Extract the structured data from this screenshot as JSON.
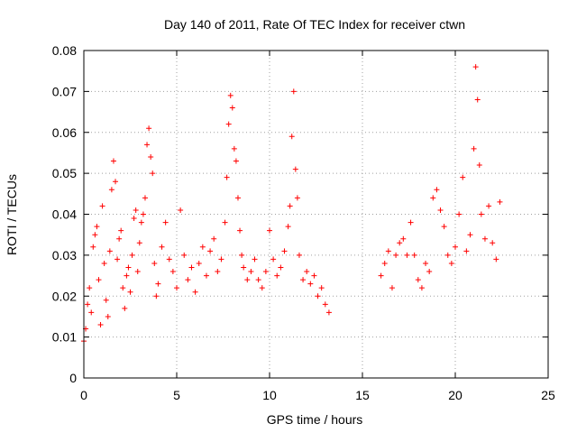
{
  "chart_data": {
    "type": "scatter",
    "title": "Day 140 of 2011, Rate Of TEC Index for receiver ctwn",
    "xlabel": "GPS time / hours",
    "ylabel": "ROTI / TECUs",
    "xlim": [
      0,
      25
    ],
    "ylim": [
      0,
      0.08
    ],
    "x_ticks": [
      "0",
      "5",
      "10",
      "15",
      "20",
      "25"
    ],
    "y_ticks": [
      "0",
      "0.01",
      "0.02",
      "0.03",
      "0.04",
      "0.05",
      "0.06",
      "0.07",
      "0.08"
    ],
    "grid": true,
    "marker": "plus",
    "color": "#ff0000",
    "series": [
      {
        "points": [
          [
            0.0,
            0.009
          ],
          [
            0.1,
            0.012
          ],
          [
            0.2,
            0.018
          ],
          [
            0.3,
            0.022
          ],
          [
            0.4,
            0.016
          ],
          [
            0.5,
            0.032
          ],
          [
            0.6,
            0.035
          ],
          [
            0.7,
            0.037
          ],
          [
            0.8,
            0.024
          ],
          [
            0.9,
            0.013
          ],
          [
            1.0,
            0.042
          ],
          [
            1.1,
            0.028
          ],
          [
            1.2,
            0.019
          ],
          [
            1.3,
            0.015
          ],
          [
            1.4,
            0.031
          ],
          [
            1.5,
            0.046
          ],
          [
            1.6,
            0.053
          ],
          [
            1.7,
            0.048
          ],
          [
            1.8,
            0.029
          ],
          [
            1.9,
            0.034
          ],
          [
            2.0,
            0.036
          ],
          [
            2.1,
            0.022
          ],
          [
            2.2,
            0.017
          ],
          [
            2.3,
            0.025
          ],
          [
            2.4,
            0.027
          ],
          [
            2.5,
            0.021
          ],
          [
            2.6,
            0.03
          ],
          [
            2.7,
            0.039
          ],
          [
            2.8,
            0.041
          ],
          [
            2.9,
            0.026
          ],
          [
            3.0,
            0.033
          ],
          [
            3.1,
            0.038
          ],
          [
            3.2,
            0.04
          ],
          [
            3.3,
            0.044
          ],
          [
            3.4,
            0.057
          ],
          [
            3.5,
            0.061
          ],
          [
            3.6,
            0.054
          ],
          [
            3.7,
            0.05
          ],
          [
            3.8,
            0.028
          ],
          [
            3.9,
            0.02
          ],
          [
            4.0,
            0.023
          ],
          [
            4.2,
            0.032
          ],
          [
            4.4,
            0.038
          ],
          [
            4.6,
            0.029
          ],
          [
            4.8,
            0.026
          ],
          [
            5.0,
            0.022
          ],
          [
            5.2,
            0.041
          ],
          [
            5.4,
            0.03
          ],
          [
            5.6,
            0.024
          ],
          [
            5.8,
            0.027
          ],
          [
            6.0,
            0.021
          ],
          [
            6.2,
            0.028
          ],
          [
            6.4,
            0.032
          ],
          [
            6.6,
            0.025
          ],
          [
            6.8,
            0.031
          ],
          [
            7.0,
            0.034
          ],
          [
            7.2,
            0.026
          ],
          [
            7.4,
            0.029
          ],
          [
            7.6,
            0.038
          ],
          [
            7.7,
            0.049
          ],
          [
            7.8,
            0.062
          ],
          [
            7.9,
            0.069
          ],
          [
            8.0,
            0.066
          ],
          [
            8.1,
            0.056
          ],
          [
            8.2,
            0.053
          ],
          [
            8.3,
            0.044
          ],
          [
            8.4,
            0.036
          ],
          [
            8.5,
            0.03
          ],
          [
            8.6,
            0.027
          ],
          [
            8.8,
            0.024
          ],
          [
            9.0,
            0.026
          ],
          [
            9.2,
            0.029
          ],
          [
            9.4,
            0.024
          ],
          [
            9.6,
            0.022
          ],
          [
            9.8,
            0.026
          ],
          [
            10.0,
            0.036
          ],
          [
            10.2,
            0.029
          ],
          [
            10.4,
            0.025
          ],
          [
            10.6,
            0.027
          ],
          [
            10.8,
            0.031
          ],
          [
            11.0,
            0.037
          ],
          [
            11.1,
            0.042
          ],
          [
            11.2,
            0.059
          ],
          [
            11.3,
            0.07
          ],
          [
            11.4,
            0.051
          ],
          [
            11.5,
            0.044
          ],
          [
            11.6,
            0.03
          ],
          [
            11.8,
            0.024
          ],
          [
            12.0,
            0.026
          ],
          [
            12.2,
            0.023
          ],
          [
            12.4,
            0.025
          ],
          [
            12.6,
            0.02
          ],
          [
            12.8,
            0.022
          ],
          [
            13.0,
            0.018
          ],
          [
            13.2,
            0.016
          ],
          [
            16.0,
            0.025
          ],
          [
            16.2,
            0.028
          ],
          [
            16.4,
            0.031
          ],
          [
            16.6,
            0.022
          ],
          [
            16.8,
            0.03
          ],
          [
            17.0,
            0.033
          ],
          [
            17.2,
            0.034
          ],
          [
            17.4,
            0.03
          ],
          [
            17.6,
            0.038
          ],
          [
            17.8,
            0.03
          ],
          [
            18.0,
            0.024
          ],
          [
            18.2,
            0.022
          ],
          [
            18.4,
            0.028
          ],
          [
            18.6,
            0.026
          ],
          [
            18.8,
            0.044
          ],
          [
            19.0,
            0.046
          ],
          [
            19.2,
            0.041
          ],
          [
            19.4,
            0.037
          ],
          [
            19.6,
            0.03
          ],
          [
            19.8,
            0.028
          ],
          [
            20.0,
            0.032
          ],
          [
            20.2,
            0.04
          ],
          [
            20.4,
            0.049
          ],
          [
            20.6,
            0.031
          ],
          [
            20.8,
            0.035
          ],
          [
            21.0,
            0.056
          ],
          [
            21.1,
            0.076
          ],
          [
            21.2,
            0.068
          ],
          [
            21.3,
            0.052
          ],
          [
            21.4,
            0.04
          ],
          [
            21.6,
            0.034
          ],
          [
            21.8,
            0.042
          ],
          [
            22.0,
            0.033
          ],
          [
            22.2,
            0.029
          ],
          [
            22.4,
            0.043
          ]
        ]
      }
    ]
  }
}
